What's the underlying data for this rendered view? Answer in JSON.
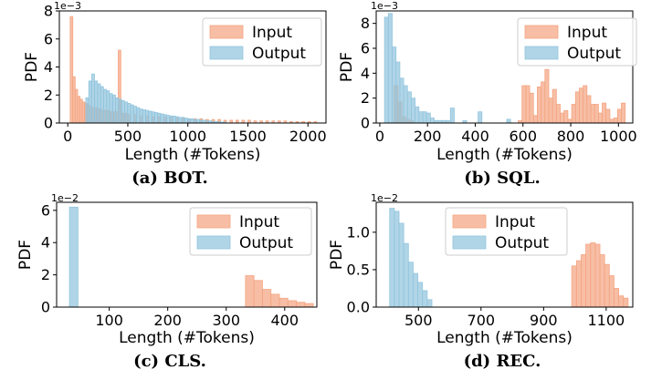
{
  "colors": {
    "input": "#f4a582",
    "output": "#92c5de"
  },
  "chart_data": [
    {
      "type": "bar",
      "title": "",
      "caption": "(a) BOT.",
      "xlabel": "Length (#Tokens)",
      "ylabel": "PDF",
      "multiplier": "1e−3",
      "xlim": [
        -70,
        2150
      ],
      "ylim": [
        0,
        8
      ],
      "xticks": [
        0,
        500,
        1000,
        1500,
        2000
      ],
      "xtick_labels": [
        "0",
        "500",
        "1000",
        "1500",
        "2000"
      ],
      "yticks": [
        0,
        2,
        4,
        6,
        8
      ],
      "ytick_labels": [
        "0",
        "2",
        "4",
        "6",
        "8"
      ],
      "legend": [
        "Input",
        "Output"
      ],
      "legend_location": "top-right",
      "bin_width": 22,
      "series": [
        {
          "name": "Input",
          "bins": [
            [
              20,
              7.6
            ],
            [
              40,
              3.3
            ],
            [
              60,
              2.4
            ],
            [
              80,
              1.9
            ],
            [
              100,
              1.7
            ],
            [
              120,
              1.5
            ],
            [
              140,
              1.4
            ],
            [
              160,
              1.3
            ],
            [
              180,
              1.2
            ],
            [
              200,
              1.1
            ],
            [
              220,
              1.1
            ],
            [
              240,
              1.0
            ],
            [
              260,
              1.0
            ],
            [
              280,
              0.9
            ],
            [
              300,
              0.9
            ],
            [
              320,
              0.9
            ],
            [
              340,
              0.8
            ],
            [
              360,
              0.8
            ],
            [
              380,
              0.8
            ],
            [
              400,
              0.8
            ],
            [
              420,
              5.2
            ],
            [
              440,
              0.7
            ],
            [
              460,
              0.7
            ],
            [
              480,
              0.7
            ],
            [
              500,
              0.6
            ],
            [
              550,
              0.6
            ],
            [
              600,
              0.5
            ],
            [
              650,
              0.5
            ],
            [
              700,
              0.45
            ],
            [
              750,
              0.45
            ],
            [
              800,
              0.4
            ],
            [
              850,
              0.4
            ],
            [
              900,
              0.35
            ],
            [
              950,
              0.35
            ],
            [
              1000,
              0.3
            ],
            [
              1050,
              0.3
            ],
            [
              1100,
              0.3
            ],
            [
              1150,
              0.25
            ],
            [
              1200,
              0.25
            ],
            [
              1250,
              0.25
            ],
            [
              1300,
              0.2
            ],
            [
              1350,
              0.2
            ],
            [
              1400,
              0.2
            ],
            [
              1450,
              0.2
            ],
            [
              1500,
              0.2
            ],
            [
              1550,
              0.15
            ],
            [
              1600,
              0.15
            ],
            [
              1650,
              0.15
            ],
            [
              1700,
              0.15
            ],
            [
              1750,
              0.15
            ],
            [
              1800,
              0.15
            ],
            [
              1850,
              0.1
            ],
            [
              1900,
              0.1
            ],
            [
              1950,
              0.1
            ],
            [
              2000,
              0.1
            ],
            [
              2050,
              0.1
            ]
          ]
        },
        {
          "name": "Output",
          "bins": [
            [
              150,
              1.8
            ],
            [
              175,
              3.0
            ],
            [
              200,
              3.5
            ],
            [
              225,
              3.0
            ],
            [
              250,
              2.8
            ],
            [
              275,
              2.6
            ],
            [
              300,
              2.4
            ],
            [
              325,
              2.3
            ],
            [
              350,
              2.1
            ],
            [
              375,
              2.0
            ],
            [
              400,
              1.8
            ],
            [
              425,
              1.7
            ],
            [
              450,
              1.6
            ],
            [
              475,
              1.5
            ],
            [
              500,
              1.4
            ],
            [
              525,
              1.3
            ],
            [
              550,
              1.2
            ],
            [
              575,
              1.1
            ],
            [
              600,
              1.0
            ],
            [
              625,
              0.95
            ],
            [
              650,
              0.9
            ],
            [
              675,
              0.85
            ],
            [
              700,
              0.8
            ],
            [
              725,
              0.75
            ],
            [
              750,
              0.7
            ],
            [
              775,
              0.65
            ],
            [
              800,
              0.6
            ],
            [
              825,
              0.55
            ],
            [
              850,
              0.5
            ],
            [
              875,
              0.5
            ],
            [
              900,
              0.45
            ],
            [
              925,
              0.4
            ],
            [
              950,
              0.4
            ],
            [
              975,
              0.35
            ],
            [
              1000,
              0.3
            ],
            [
              1025,
              0.3
            ],
            [
              1050,
              0.25
            ],
            [
              1075,
              0.25
            ],
            [
              1100,
              0.2
            ],
            [
              1125,
              0.2
            ],
            [
              1150,
              0.15
            ],
            [
              1175,
              0.15
            ],
            [
              1200,
              0.1
            ],
            [
              1225,
              0.1
            ],
            [
              1250,
              0.08
            ],
            [
              1275,
              0.06
            ],
            [
              1300,
              0.05
            ]
          ]
        }
      ]
    },
    {
      "type": "bar",
      "title": "",
      "caption": "(b) SQL.",
      "xlabel": "Length (#Tokens)",
      "ylabel": "PDF",
      "multiplier": "1e−3",
      "xlim": [
        -15,
        1060
      ],
      "ylim": [
        0,
        9
      ],
      "xticks": [
        0,
        200,
        400,
        600,
        800,
        1000
      ],
      "xtick_labels": [
        "0",
        "200",
        "400",
        "600",
        "800",
        "1000"
      ],
      "yticks": [
        0,
        2,
        4,
        6,
        8
      ],
      "ytick_labels": [
        "0",
        "2",
        "4",
        "6",
        "8"
      ],
      "legend": [
        "Input",
        "Output"
      ],
      "legend_location": "top-right",
      "bin_width": 16,
      "series": [
        {
          "name": "Input",
          "bins": [
            [
              60,
              3.0
            ],
            [
              76,
              1.7
            ],
            [
              92,
              0.5
            ],
            [
              108,
              0.3
            ],
            [
              124,
              0.2
            ],
            [
              580,
              0.2
            ],
            [
              596,
              3.0
            ],
            [
              612,
              3.0
            ],
            [
              628,
              2.4
            ],
            [
              644,
              0.6
            ],
            [
              660,
              2.9
            ],
            [
              676,
              3.3
            ],
            [
              692,
              4.3
            ],
            [
              708,
              2.0
            ],
            [
              724,
              2.7
            ],
            [
              740,
              1.5
            ],
            [
              756,
              0.8
            ],
            [
              772,
              1.0
            ],
            [
              788,
              0.3
            ],
            [
              804,
              1.5
            ],
            [
              820,
              2.5
            ],
            [
              836,
              2.8
            ],
            [
              852,
              3.0
            ],
            [
              868,
              2.2
            ],
            [
              884,
              1.5
            ],
            [
              900,
              1.5
            ],
            [
              916,
              0.8
            ],
            [
              932,
              1.6
            ],
            [
              948,
              1.1
            ],
            [
              964,
              0.3
            ],
            [
              980,
              0.4
            ],
            [
              996,
              1.1
            ],
            [
              1012,
              1.6
            ]
          ]
        },
        {
          "name": "Output",
          "bins": [
            [
              20,
              8.5
            ],
            [
              36,
              8.8
            ],
            [
              52,
              6.1
            ],
            [
              68,
              4.9
            ],
            [
              84,
              3.6
            ],
            [
              100,
              3.0
            ],
            [
              116,
              2.5
            ],
            [
              132,
              2.0
            ],
            [
              148,
              1.3
            ],
            [
              164,
              0.9
            ],
            [
              180,
              0.9
            ],
            [
              196,
              0.8
            ],
            [
              212,
              0.4
            ],
            [
              228,
              0.2
            ],
            [
              244,
              0.2
            ],
            [
              260,
              0.2
            ],
            [
              276,
              0.2
            ],
            [
              296,
              1.2
            ],
            [
              348,
              0.2
            ],
            [
              412,
              0.9
            ],
            [
              532,
              0.3
            ]
          ]
        }
      ]
    },
    {
      "type": "bar",
      "title": "",
      "caption": "(c) CLS.",
      "xlabel": "Length (#Tokens)",
      "ylabel": "PDF",
      "multiplier": "1e−2",
      "xlim": [
        10,
        455
      ],
      "ylim": [
        0,
        6.5
      ],
      "xticks": [
        100,
        200,
        300,
        400
      ],
      "xtick_labels": [
        "100",
        "200",
        "300",
        "400"
      ],
      "yticks": [
        0,
        2,
        4,
        6
      ],
      "ytick_labels": [
        "0",
        "2",
        "4",
        "6"
      ],
      "legend": [
        "Input",
        "Output"
      ],
      "legend_location": "top-right",
      "bin_width": 14.5,
      "series": [
        {
          "name": "Input",
          "bins": [
            [
              333,
              1.95
            ],
            [
              347.5,
              1.65
            ],
            [
              362,
              1.1
            ],
            [
              376.5,
              0.8
            ],
            [
              391,
              0.55
            ],
            [
              405.5,
              0.4
            ],
            [
              420,
              0.3
            ],
            [
              434.5,
              0.22
            ]
          ]
        },
        {
          "name": "Output",
          "bins": [
            [
              32,
              6.2
            ]
          ]
        }
      ]
    },
    {
      "type": "bar",
      "title": "",
      "caption": "(d) REC.",
      "xlabel": "Length (#Tokens)",
      "ylabel": "PDF",
      "multiplier": "1e−2",
      "xlim": [
        365,
        1185
      ],
      "ylim": [
        0,
        1.4
      ],
      "xticks": [
        500,
        700,
        900,
        1100
      ],
      "xtick_labels": [
        "500",
        "700",
        "900",
        "1100"
      ],
      "yticks": [
        0.0,
        0.5,
        1.0
      ],
      "ytick_labels": [
        "0.0",
        "0.5",
        "1.0"
      ],
      "legend": [
        "Input",
        "Output"
      ],
      "legend_location": "top-right",
      "bin_width": 15,
      "series": [
        {
          "name": "Input",
          "bins": [
            [
              990,
              0.55
            ],
            [
              1005,
              0.62
            ],
            [
              1020,
              0.7
            ],
            [
              1035,
              0.84
            ],
            [
              1050,
              0.86
            ],
            [
              1065,
              0.84
            ],
            [
              1080,
              0.7
            ],
            [
              1095,
              0.57
            ],
            [
              1110,
              0.42
            ],
            [
              1125,
              0.25
            ],
            [
              1140,
              0.15
            ],
            [
              1155,
              0.12
            ]
          ]
        },
        {
          "name": "Output",
          "bins": [
            [
              408,
              1.32
            ],
            [
              423,
              1.28
            ],
            [
              438,
              1.12
            ],
            [
              453,
              0.85
            ],
            [
              468,
              0.6
            ],
            [
              483,
              0.45
            ],
            [
              498,
              0.33
            ],
            [
              513,
              0.22
            ],
            [
              528,
              0.1
            ]
          ]
        }
      ]
    }
  ]
}
